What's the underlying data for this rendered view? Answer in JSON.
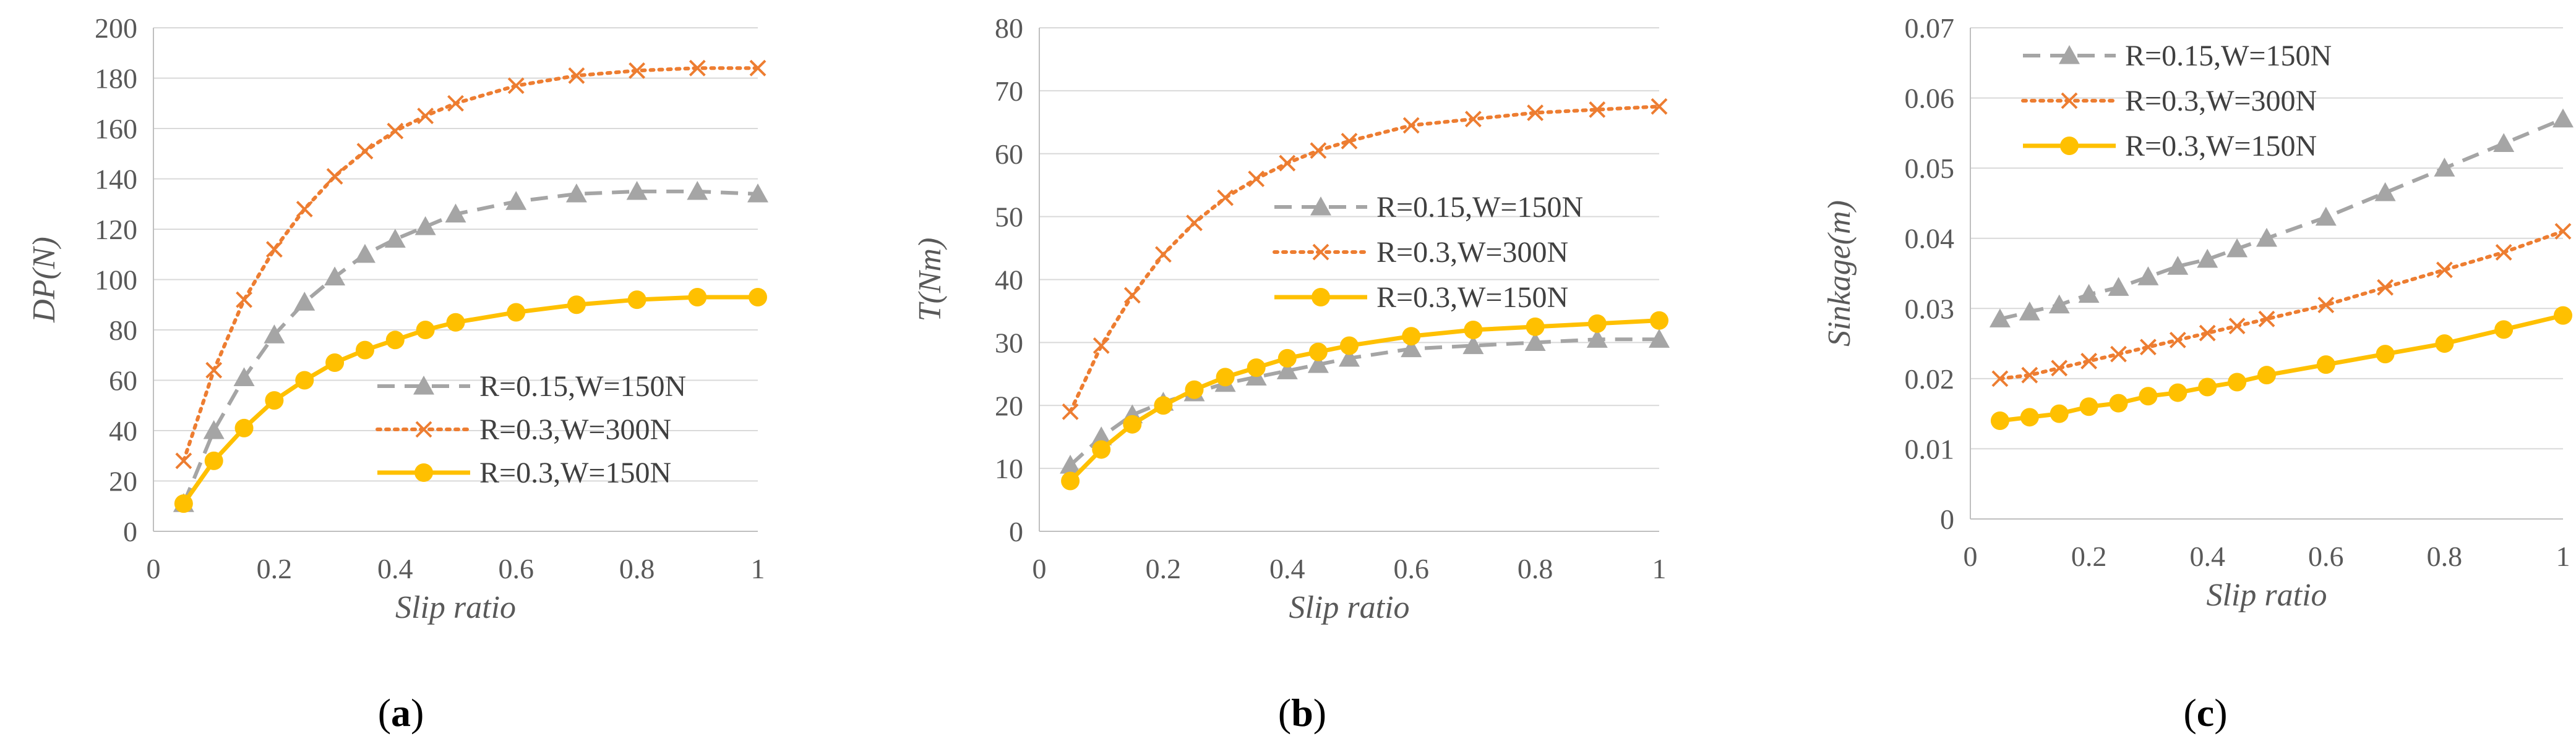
{
  "chart_data": [
    {
      "type": "line",
      "panel": "(a)",
      "panel_letter": "a",
      "xlabel": "Slip ratio",
      "ylabel": "DP(N)",
      "xlim": [
        0,
        1
      ],
      "ylim": [
        0,
        200
      ],
      "xticks": [
        0,
        0.2,
        0.4,
        0.6,
        0.8,
        1
      ],
      "xtick_labels": [
        "0",
        "0.2",
        "0.4",
        "0.6",
        "0.8",
        "1"
      ],
      "yticks": [
        0,
        20,
        40,
        60,
        80,
        100,
        120,
        140,
        160,
        180,
        200
      ],
      "ytick_labels": [
        "0",
        "20",
        "40",
        "60",
        "80",
        "100",
        "120",
        "140",
        "160",
        "180",
        "200"
      ],
      "grid": "horizontal",
      "legend_position": "lower-right",
      "series": [
        {
          "name": "R=0.15,W=150N",
          "x": [
            0.05,
            0.1,
            0.15,
            0.2,
            0.25,
            0.3,
            0.35,
            0.4,
            0.45,
            0.5,
            0.6,
            0.7,
            0.8,
            0.9,
            1
          ],
          "y": [
            11,
            40,
            61,
            78,
            91,
            101,
            110,
            116,
            121,
            126,
            131,
            134,
            135,
            135,
            134
          ]
        },
        {
          "name": "R=0.3,W=300N",
          "x": [
            0.05,
            0.1,
            0.15,
            0.2,
            0.25,
            0.3,
            0.35,
            0.4,
            0.45,
            0.5,
            0.6,
            0.7,
            0.8,
            0.9,
            1
          ],
          "y": [
            28,
            64,
            92,
            112,
            128,
            141,
            151,
            159,
            165,
            170,
            177,
            181,
            183,
            184,
            184
          ]
        },
        {
          "name": "R=0.3,W=150N",
          "x": [
            0.05,
            0.1,
            0.15,
            0.2,
            0.25,
            0.3,
            0.35,
            0.4,
            0.45,
            0.5,
            0.6,
            0.7,
            0.8,
            0.9,
            1
          ],
          "y": [
            11,
            28,
            41,
            52,
            60,
            67,
            72,
            76,
            80,
            83,
            87,
            90,
            92,
            93,
            93
          ]
        }
      ]
    },
    {
      "type": "line",
      "panel": "(b)",
      "panel_letter": "b",
      "xlabel": "Slip ratio",
      "ylabel": "T(Nm)",
      "xlim": [
        0,
        1
      ],
      "ylim": [
        0,
        80
      ],
      "xticks": [
        0,
        0.2,
        0.4,
        0.6,
        0.8,
        1
      ],
      "xtick_labels": [
        "0",
        "0.2",
        "0.4",
        "0.6",
        "0.8",
        "1"
      ],
      "yticks": [
        0,
        10,
        20,
        30,
        40,
        50,
        60,
        70,
        80
      ],
      "ytick_labels": [
        "0",
        "10",
        "20",
        "30",
        "40",
        "50",
        "60",
        "70",
        "80"
      ],
      "grid": "horizontal",
      "legend_position": "middle-right",
      "series": [
        {
          "name": "R=0.15,W=150N",
          "x": [
            0.05,
            0.1,
            0.15,
            0.2,
            0.25,
            0.3,
            0.35,
            0.4,
            0.45,
            0.5,
            0.6,
            0.7,
            0.8,
            0.9,
            1
          ],
          "y": [
            10.5,
            15,
            18.5,
            20.5,
            22,
            23.5,
            24.5,
            25.5,
            26.5,
            27.5,
            29,
            29.5,
            30,
            30.5,
            30.5
          ]
        },
        {
          "name": "R=0.3,W=300N",
          "x": [
            0.05,
            0.1,
            0.15,
            0.2,
            0.25,
            0.3,
            0.35,
            0.4,
            0.45,
            0.5,
            0.6,
            0.7,
            0.8,
            0.9,
            1
          ],
          "y": [
            19,
            29.5,
            37.5,
            44,
            49,
            53,
            56,
            58.5,
            60.5,
            62,
            64.5,
            65.5,
            66.5,
            67,
            67.5
          ]
        },
        {
          "name": "R=0.3,W=150N",
          "x": [
            0.05,
            0.1,
            0.15,
            0.2,
            0.25,
            0.3,
            0.35,
            0.4,
            0.45,
            0.5,
            0.6,
            0.7,
            0.8,
            0.9,
            1
          ],
          "y": [
            8,
            13,
            17,
            20,
            22.5,
            24.5,
            26,
            27.5,
            28.5,
            29.5,
            31,
            32,
            32.5,
            33,
            33.5
          ]
        }
      ]
    },
    {
      "type": "line",
      "panel": "(c)",
      "panel_letter": "c",
      "xlabel": "Slip ratio",
      "ylabel": "Sinkage(m)",
      "xlim": [
        0,
        1
      ],
      "ylim": [
        0,
        0.07
      ],
      "xticks": [
        0,
        0.2,
        0.4,
        0.6,
        0.8,
        1
      ],
      "xtick_labels": [
        "0",
        "0.2",
        "0.4",
        "0.6",
        "0.8",
        "1"
      ],
      "yticks": [
        0,
        0.01,
        0.02,
        0.03,
        0.04,
        0.05,
        0.06,
        0.07
      ],
      "ytick_labels": [
        "0",
        "0.01",
        "0.02",
        "0.03",
        "0.04",
        "0.05",
        "0.06",
        "0.07"
      ],
      "grid": "horizontal",
      "legend_position": "top-left",
      "series": [
        {
          "name": "R=0.15,W=150N",
          "x": [
            0.05,
            0.1,
            0.15,
            0.2,
            0.25,
            0.3,
            0.35,
            0.4,
            0.45,
            0.5,
            0.6,
            0.7,
            0.8,
            0.9,
            1
          ],
          "y": [
            0.0285,
            0.0295,
            0.0305,
            0.032,
            0.033,
            0.0345,
            0.036,
            0.037,
            0.0385,
            0.04,
            0.043,
            0.0465,
            0.05,
            0.0535,
            0.057
          ]
        },
        {
          "name": "R=0.3,W=300N",
          "x": [
            0.05,
            0.1,
            0.15,
            0.2,
            0.25,
            0.3,
            0.35,
            0.4,
            0.45,
            0.5,
            0.6,
            0.7,
            0.8,
            0.9,
            1
          ],
          "y": [
            0.02,
            0.0205,
            0.0215,
            0.0225,
            0.0235,
            0.0245,
            0.0255,
            0.0265,
            0.0275,
            0.0285,
            0.0305,
            0.033,
            0.0355,
            0.038,
            0.041
          ]
        },
        {
          "name": "R=0.3,W=150N",
          "x": [
            0.05,
            0.1,
            0.15,
            0.2,
            0.25,
            0.3,
            0.35,
            0.4,
            0.45,
            0.5,
            0.6,
            0.7,
            0.8,
            0.9,
            1
          ],
          "y": [
            0.014,
            0.0145,
            0.015,
            0.016,
            0.0165,
            0.0175,
            0.018,
            0.0188,
            0.0195,
            0.0205,
            0.022,
            0.0235,
            0.025,
            0.027,
            0.029
          ]
        }
      ]
    }
  ],
  "series_styles": [
    {
      "color": "#a5a5a5",
      "marker": "triangle",
      "dash": "dashed"
    },
    {
      "color": "#ed7d31",
      "marker": "x",
      "dash": "dotted"
    },
    {
      "color": "#ffc000",
      "marker": "circle",
      "dash": "solid"
    }
  ]
}
